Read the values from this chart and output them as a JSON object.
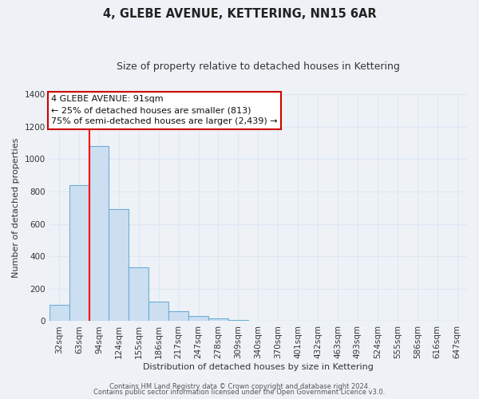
{
  "title": "4, GLEBE AVENUE, KETTERING, NN15 6AR",
  "subtitle": "Size of property relative to detached houses in Kettering",
  "xlabel": "Distribution of detached houses by size in Kettering",
  "ylabel": "Number of detached properties",
  "bar_labels": [
    "32sqm",
    "63sqm",
    "94sqm",
    "124sqm",
    "155sqm",
    "186sqm",
    "217sqm",
    "247sqm",
    "278sqm",
    "309sqm",
    "340sqm",
    "370sqm",
    "401sqm",
    "432sqm",
    "463sqm",
    "493sqm",
    "524sqm",
    "555sqm",
    "586sqm",
    "616sqm",
    "647sqm"
  ],
  "bar_values": [
    100,
    840,
    1080,
    690,
    330,
    120,
    60,
    30,
    15,
    5,
    0,
    0,
    0,
    0,
    0,
    0,
    0,
    0,
    0,
    0,
    0
  ],
  "bar_color": "#ccdff0",
  "bar_edge_color": "#6baed6",
  "ylim": [
    0,
    1400
  ],
  "yticks": [
    0,
    200,
    400,
    600,
    800,
    1000,
    1200,
    1400
  ],
  "red_line_index": 2,
  "annotation_title": "4 GLEBE AVENUE: 91sqm",
  "annotation_line1": "← 25% of detached houses are smaller (813)",
  "annotation_line2": "75% of semi-detached houses are larger (2,439) →",
  "footer1": "Contains HM Land Registry data © Crown copyright and database right 2024.",
  "footer2": "Contains public sector information licensed under the Open Government Licence v3.0.",
  "background_color": "#eef2f7",
  "grid_color": "#dce8f5",
  "annotation_box_color": "#ffffff",
  "annotation_box_edge": "#cc0000",
  "title_fontsize": 10.5,
  "subtitle_fontsize": 9,
  "axis_label_fontsize": 8,
  "tick_fontsize": 7.5,
  "annotation_fontsize": 8
}
